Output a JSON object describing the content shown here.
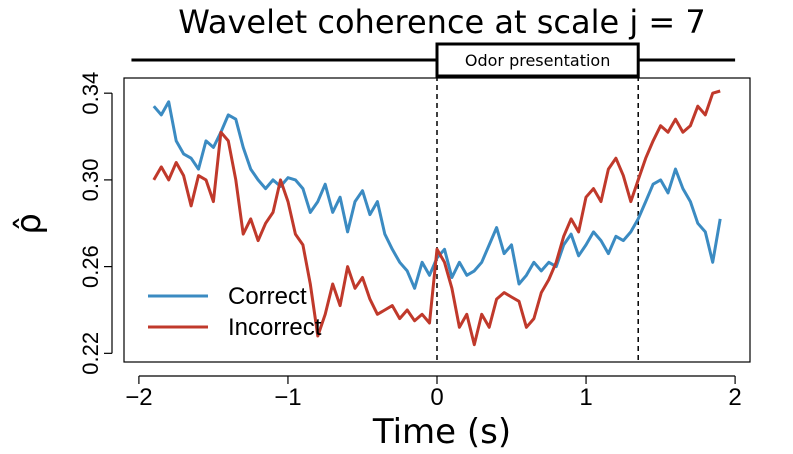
{
  "chart_data": {
    "type": "line",
    "title": "Wavelet coherence at scale j = 7",
    "xlabel": "Time (s)",
    "ylabel": "ρ̂",
    "xlim": [
      -2.1,
      2.1
    ],
    "ylim": [
      0.216,
      0.347
    ],
    "x_ticks": [
      -2,
      -1,
      0,
      1,
      2
    ],
    "x_tick_labels": [
      "−2",
      "−1",
      "0",
      "1",
      "2"
    ],
    "y_ticks": [
      0.22,
      0.26,
      0.3,
      0.34
    ],
    "y_tick_labels": [
      "0.22",
      "0.26",
      "0.30",
      "0.34"
    ],
    "annotation": {
      "label": "Odor presentation",
      "start": 0,
      "end": 1.35,
      "bar_from": -2.05,
      "bar_to": 2.0
    },
    "vlines": [
      0,
      1.35
    ],
    "legend": {
      "position": "bottom-left"
    },
    "series": [
      {
        "name": "Correct",
        "color": "#3b8bc2",
        "x": [
          -1.9,
          -1.85,
          -1.8,
          -1.75,
          -1.7,
          -1.65,
          -1.6,
          -1.55,
          -1.5,
          -1.45,
          -1.4,
          -1.35,
          -1.3,
          -1.25,
          -1.2,
          -1.15,
          -1.1,
          -1.05,
          -1.0,
          -0.95,
          -0.9,
          -0.85,
          -0.8,
          -0.75,
          -0.7,
          -0.65,
          -0.6,
          -0.55,
          -0.5,
          -0.45,
          -0.4,
          -0.35,
          -0.3,
          -0.25,
          -0.2,
          -0.15,
          -0.1,
          -0.05,
          0.0,
          0.05,
          0.1,
          0.15,
          0.2,
          0.25,
          0.3,
          0.35,
          0.4,
          0.45,
          0.5,
          0.55,
          0.6,
          0.65,
          0.7,
          0.75,
          0.8,
          0.85,
          0.9,
          0.95,
          1.0,
          1.05,
          1.1,
          1.15,
          1.2,
          1.25,
          1.3,
          1.35,
          1.4,
          1.45,
          1.5,
          1.55,
          1.6,
          1.65,
          1.7,
          1.75,
          1.8,
          1.85,
          1.9
        ],
        "y": [
          0.334,
          0.33,
          0.336,
          0.318,
          0.312,
          0.31,
          0.305,
          0.318,
          0.315,
          0.322,
          0.33,
          0.328,
          0.315,
          0.305,
          0.3,
          0.296,
          0.3,
          0.297,
          0.301,
          0.3,
          0.296,
          0.285,
          0.29,
          0.298,
          0.285,
          0.292,
          0.276,
          0.29,
          0.295,
          0.284,
          0.29,
          0.275,
          0.268,
          0.262,
          0.258,
          0.25,
          0.262,
          0.256,
          0.264,
          0.268,
          0.255,
          0.262,
          0.256,
          0.258,
          0.262,
          0.27,
          0.278,
          0.266,
          0.27,
          0.252,
          0.256,
          0.262,
          0.258,
          0.262,
          0.26,
          0.27,
          0.275,
          0.265,
          0.27,
          0.276,
          0.272,
          0.266,
          0.274,
          0.272,
          0.276,
          0.282,
          0.29,
          0.298,
          0.3,
          0.294,
          0.305,
          0.296,
          0.29,
          0.28,
          0.276,
          0.262,
          0.282
        ]
      },
      {
        "name": "Incorrect",
        "color": "#c0392b",
        "x": [
          -1.9,
          -1.85,
          -1.8,
          -1.75,
          -1.7,
          -1.65,
          -1.6,
          -1.55,
          -1.5,
          -1.45,
          -1.4,
          -1.35,
          -1.3,
          -1.25,
          -1.2,
          -1.15,
          -1.1,
          -1.05,
          -1.0,
          -0.95,
          -0.9,
          -0.85,
          -0.8,
          -0.75,
          -0.7,
          -0.65,
          -0.6,
          -0.55,
          -0.5,
          -0.45,
          -0.4,
          -0.35,
          -0.3,
          -0.25,
          -0.2,
          -0.15,
          -0.1,
          -0.05,
          0.0,
          0.05,
          0.1,
          0.15,
          0.2,
          0.25,
          0.3,
          0.35,
          0.4,
          0.45,
          0.5,
          0.55,
          0.6,
          0.65,
          0.7,
          0.75,
          0.8,
          0.85,
          0.9,
          0.95,
          1.0,
          1.05,
          1.1,
          1.15,
          1.2,
          1.25,
          1.3,
          1.35,
          1.4,
          1.45,
          1.5,
          1.55,
          1.6,
          1.65,
          1.7,
          1.75,
          1.8,
          1.85,
          1.9
        ],
        "y": [
          0.3,
          0.306,
          0.3,
          0.308,
          0.302,
          0.288,
          0.302,
          0.3,
          0.29,
          0.322,
          0.318,
          0.3,
          0.275,
          0.282,
          0.272,
          0.28,
          0.285,
          0.3,
          0.29,
          0.275,
          0.27,
          0.252,
          0.228,
          0.238,
          0.252,
          0.242,
          0.26,
          0.25,
          0.255,
          0.245,
          0.238,
          0.24,
          0.242,
          0.236,
          0.24,
          0.235,
          0.238,
          0.234,
          0.268,
          0.262,
          0.25,
          0.232,
          0.238,
          0.224,
          0.238,
          0.232,
          0.245,
          0.248,
          0.246,
          0.244,
          0.232,
          0.236,
          0.248,
          0.254,
          0.262,
          0.274,
          0.282,
          0.276,
          0.292,
          0.296,
          0.29,
          0.305,
          0.31,
          0.302,
          0.29,
          0.3,
          0.31,
          0.318,
          0.325,
          0.322,
          0.328,
          0.322,
          0.325,
          0.334,
          0.33,
          0.34,
          0.341
        ]
      }
    ]
  }
}
